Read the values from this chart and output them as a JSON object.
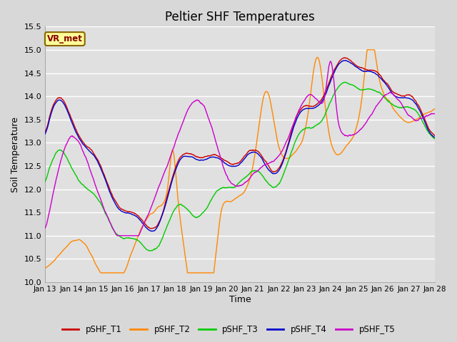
{
  "title": "Peltier SHF Temperatures",
  "xlabel": "Time",
  "ylabel": "Soil Temperature",
  "ylim": [
    10.0,
    15.5
  ],
  "yticks": [
    10.0,
    10.5,
    11.0,
    11.5,
    12.0,
    12.5,
    13.0,
    13.5,
    14.0,
    14.5,
    15.0,
    15.5
  ],
  "xtick_labels": [
    "Jan 13",
    "Jan 14",
    "Jan 15",
    "Jan 16",
    "Jan 17",
    "Jan 18",
    "Jan 19",
    "Jan 20",
    "Jan 21",
    "Jan 22",
    "Jan 23",
    "Jan 24",
    "Jan 25",
    "Jan 26",
    "Jan 27",
    "Jan 28"
  ],
  "series_colors": [
    "#cc0000",
    "#ff8800",
    "#00cc00",
    "#0000cc",
    "#cc00cc"
  ],
  "series_labels": [
    "pSHF_T1",
    "pSHF_T2",
    "pSHF_T3",
    "pSHF_T4",
    "pSHF_T5"
  ],
  "legend_label": "VR_met",
  "legend_bg": "#ffff99",
  "legend_border": "#886600",
  "legend_text_color": "#880000",
  "plot_bg": "#e0e0e0",
  "grid_color": "#ffffff",
  "title_fontsize": 12,
  "n_days": 15,
  "n_pts": 1440
}
